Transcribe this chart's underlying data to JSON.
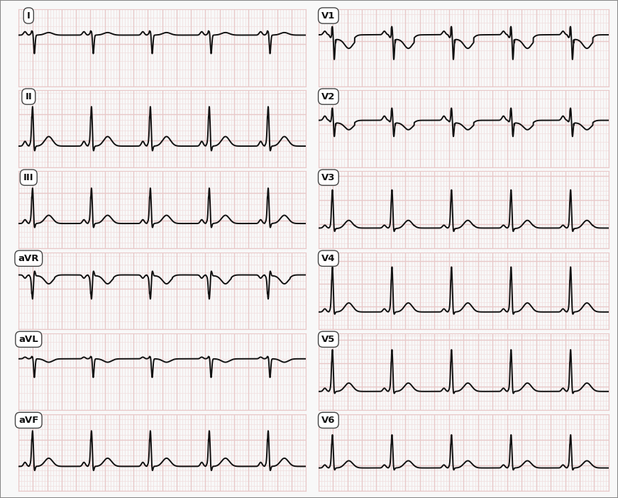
{
  "background_color": "#f8f8f8",
  "grid_major_color": "#e8c8c8",
  "grid_minor_color": "#f0dede",
  "line_color": "#111111",
  "border_color": "#888888",
  "leads_left": [
    "I",
    "II",
    "III",
    "aVR",
    "aVL",
    "aVF"
  ],
  "leads_right": [
    "V1",
    "V2",
    "V3",
    "V4",
    "V5",
    "V6"
  ],
  "fs": 500,
  "duration": 4.0,
  "rr": 0.82,
  "morphologies": {
    "I": {
      "p": 0.04,
      "delta": 0.02,
      "r": 0.05,
      "s": -0.22,
      "t": 0.03,
      "st": 0.0,
      "baseline": 0.05,
      "ylim": [
        -0.55,
        0.35
      ]
    },
    "II": {
      "p": 0.09,
      "delta": 0.1,
      "r": 0.75,
      "s": -0.12,
      "t": 0.18,
      "st": 0.0,
      "baseline": -0.15,
      "ylim": [
        -0.55,
        0.9
      ]
    },
    "III": {
      "p": 0.07,
      "delta": 0.09,
      "r": 0.65,
      "s": -0.1,
      "t": 0.15,
      "st": 0.0,
      "baseline": -0.1,
      "ylim": [
        -0.55,
        0.85
      ]
    },
    "aVR": {
      "p": -0.04,
      "delta": -0.05,
      "r": -0.3,
      "s": 0.06,
      "t": -0.1,
      "st": -0.01,
      "baseline": 0.02,
      "ylim": [
        -0.65,
        0.3
      ]
    },
    "aVL": {
      "p": 0.02,
      "delta": 0.01,
      "r": 0.03,
      "s": -0.22,
      "t": -0.04,
      "st": 0.0,
      "baseline": 0.05,
      "ylim": [
        -0.55,
        0.35
      ]
    },
    "aVF": {
      "p": 0.08,
      "delta": 0.1,
      "r": 0.7,
      "s": -0.11,
      "t": 0.16,
      "st": 0.0,
      "baseline": -0.12,
      "ylim": [
        -0.6,
        0.9
      ]
    },
    "V1": {
      "p": 0.04,
      "delta": -0.06,
      "r": 0.1,
      "s": -0.28,
      "t": -0.1,
      "st": -0.05,
      "baseline": 0.02,
      "ylim": [
        -0.55,
        0.3
      ]
    },
    "V2": {
      "p": 0.05,
      "delta": -0.04,
      "r": 0.15,
      "s": -0.2,
      "t": -0.08,
      "st": -0.03,
      "baseline": 0.0,
      "ylim": [
        -0.55,
        0.35
      ]
    },
    "V3": {
      "p": 0.06,
      "delta": 0.06,
      "r": 0.8,
      "s": -0.1,
      "t": 0.17,
      "st": -0.01,
      "baseline": -0.18,
      "ylim": [
        -0.6,
        1.0
      ]
    },
    "V4": {
      "p": 0.07,
      "delta": 0.1,
      "r": 1.0,
      "s": -0.08,
      "t": 0.2,
      "st": 0.0,
      "baseline": -0.22,
      "ylim": [
        -0.6,
        1.1
      ]
    },
    "V5": {
      "p": 0.07,
      "delta": 0.09,
      "r": 0.9,
      "s": -0.07,
      "t": 0.18,
      "st": 0.0,
      "baseline": -0.2,
      "ylim": [
        -0.6,
        1.05
      ]
    },
    "V6": {
      "p": 0.06,
      "delta": 0.07,
      "r": 0.65,
      "s": -0.06,
      "t": 0.14,
      "st": 0.0,
      "baseline": -0.15,
      "ylim": [
        -0.6,
        0.9
      ]
    }
  }
}
